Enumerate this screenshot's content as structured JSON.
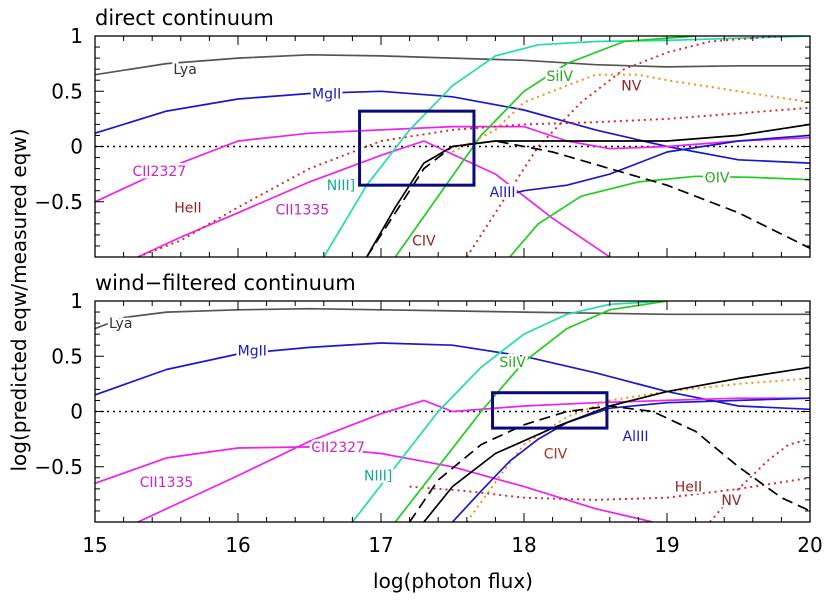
{
  "figure": {
    "xlabel": "log(photon flux)",
    "ylabel": "log(predicted eqw/measured eqw)"
  },
  "chart_data": [
    {
      "type": "line",
      "title": "direct continuum",
      "xlim": [
        15,
        20
      ],
      "ylim": [
        -1,
        1
      ],
      "xticks": [
        "15",
        "16",
        "17",
        "18",
        "19",
        "20"
      ],
      "yticks": [
        "−0.5",
        "0",
        "0.5",
        "1"
      ],
      "box": {
        "x": [
          16.85,
          17.65
        ],
        "y": [
          -0.35,
          0.32
        ]
      },
      "series": [
        {
          "name": "Lya",
          "color": "#555555",
          "style": "solid",
          "x": [
            15,
            15.5,
            16,
            16.5,
            17,
            17.5,
            18,
            18.5,
            19,
            19.5,
            20
          ],
          "y": [
            0.65,
            0.75,
            0.8,
            0.83,
            0.82,
            0.8,
            0.78,
            0.74,
            0.72,
            0.73,
            0.73
          ]
        },
        {
          "name": "MgII",
          "color": "#1a1acc",
          "style": "solid",
          "x": [
            15,
            15.5,
            16,
            16.5,
            17,
            17.5,
            18,
            18.5,
            19,
            19.5,
            20
          ],
          "y": [
            0.12,
            0.32,
            0.43,
            0.48,
            0.5,
            0.45,
            0.33,
            0.15,
            0.0,
            -0.12,
            -0.15
          ]
        },
        {
          "name": "CII2327",
          "color": "#ee22ee",
          "style": "solid",
          "x": [
            15,
            15.5,
            16,
            16.5,
            17,
            17.5,
            18,
            18.3,
            18.6,
            19,
            19.5,
            20
          ],
          "y": [
            -0.5,
            -0.2,
            0.05,
            0.12,
            0.15,
            0.18,
            0.18,
            0.05,
            -0.02,
            0.0,
            0.05,
            0.08
          ]
        },
        {
          "name": "CII1335",
          "color": "#ee22ee",
          "style": "solid",
          "x": [
            15.3,
            15.6,
            16,
            16.5,
            17,
            17.3,
            17.8,
            18.2,
            18.6
          ],
          "y": [
            -1.0,
            -0.82,
            -0.6,
            -0.32,
            -0.08,
            0.05,
            -0.25,
            -0.65,
            -1.0
          ]
        },
        {
          "name": "HeII",
          "color": "#dd2222",
          "style": "dotted",
          "x": [
            15.3,
            15.6,
            16,
            16.5,
            17,
            17.5,
            18,
            18.5,
            19,
            19.5,
            20
          ],
          "y": [
            -1.0,
            -0.85,
            -0.55,
            -0.2,
            0.05,
            0.15,
            0.2,
            0.22,
            0.25,
            0.3,
            0.35
          ]
        },
        {
          "name": "NIII]",
          "color": "#22ddaa",
          "style": "solid",
          "x": [
            16.6,
            16.9,
            17.2,
            17.5,
            17.8,
            18.1,
            18.5,
            19,
            19.5,
            20
          ],
          "y": [
            -1.0,
            -0.35,
            0.15,
            0.55,
            0.82,
            0.92,
            0.95,
            0.96,
            0.98,
            1.0
          ]
        },
        {
          "name": "SiIV",
          "color": "#22cc22",
          "style": "solid",
          "x": [
            17.1,
            17.4,
            17.7,
            18,
            18.3,
            18.7,
            19.2
          ],
          "y": [
            -1.0,
            -0.45,
            0.1,
            0.5,
            0.75,
            0.95,
            1.0
          ]
        },
        {
          "name": "NV",
          "color": "#ff8800",
          "style": "dotted",
          "x": [
            17.5,
            17.8,
            18,
            18.3,
            18.5,
            18.8,
            19,
            19.5,
            20
          ],
          "y": [
            -0.05,
            0.15,
            0.4,
            0.55,
            0.65,
            0.65,
            0.6,
            0.5,
            0.4
          ]
        },
        {
          "name": "CIV",
          "color": "#dd2222",
          "style": "dotted",
          "x": [
            17.6,
            17.9,
            18.1,
            18.4,
            18.7,
            19,
            19.3,
            19.8
          ],
          "y": [
            -1.0,
            -0.4,
            0.0,
            0.4,
            0.7,
            0.85,
            0.95,
            1.0
          ]
        },
        {
          "name": "AlIII",
          "color": "#1a1acc",
          "style": "solid",
          "x": [
            17.85,
            18,
            18.3,
            18.6,
            19,
            19.5,
            20
          ],
          "y": [
            -0.45,
            -0.4,
            -0.35,
            -0.25,
            -0.05,
            0.05,
            0.1
          ]
        },
        {
          "name": "OIV",
          "color": "#22cc22",
          "style": "solid",
          "x": [
            17.9,
            18.1,
            18.4,
            18.8,
            19.2,
            19.6,
            20
          ],
          "y": [
            -1.0,
            -0.7,
            -0.45,
            -0.32,
            -0.27,
            -0.28,
            -0.3
          ]
        },
        {
          "name": "",
          "color": "#000000",
          "style": "solid",
          "x": [
            16.9,
            17.1,
            17.3,
            17.5,
            17.8,
            18.2,
            18.6,
            19,
            19.5,
            20
          ],
          "y": [
            -1.0,
            -0.55,
            -0.15,
            0.0,
            0.05,
            0.05,
            0.05,
            0.05,
            0.1,
            0.2
          ]
        },
        {
          "name": "",
          "color": "#000000",
          "style": "dashed",
          "x": [
            16.9,
            17.1,
            17.3,
            17.5,
            17.8,
            18.2,
            18.6,
            19,
            19.5,
            20
          ],
          "y": [
            -1.0,
            -0.6,
            -0.2,
            0.0,
            0.05,
            -0.05,
            -0.2,
            -0.35,
            -0.6,
            -0.92
          ]
        }
      ],
      "labels": [
        {
          "text": "Lya",
          "x": 15.63,
          "y": 0.7,
          "color": "#333333",
          "series": "Lya"
        },
        {
          "text": "MgII",
          "x": 16.62,
          "y": 0.48,
          "color": "#1a1acc",
          "series": "MgII"
        },
        {
          "text": "SiIV",
          "x": 18.25,
          "y": 0.64,
          "color": "#22aa22",
          "series": "SiIV"
        },
        {
          "text": "NV",
          "x": 18.75,
          "y": 0.55,
          "color": "#992222",
          "series": "NV"
        },
        {
          "text": "CII2327",
          "x": 15.45,
          "y": -0.22,
          "color": "#cc22cc",
          "series": "CII2327"
        },
        {
          "text": "HeII",
          "x": 15.65,
          "y": -0.55,
          "color": "#992222",
          "series": "HeII"
        },
        {
          "text": "CII1335",
          "x": 16.45,
          "y": -0.57,
          "color": "#cc22cc",
          "series": "CII1335"
        },
        {
          "text": "NIII]",
          "x": 16.72,
          "y": -0.35,
          "color": "#11aa99",
          "series": "NIII]"
        },
        {
          "text": "AlIII",
          "x": 17.85,
          "y": -0.41,
          "color": "#1a1acc",
          "series": "AlIII"
        },
        {
          "text": "OIV",
          "x": 19.35,
          "y": -0.28,
          "color": "#22aa22",
          "series": "OIV"
        },
        {
          "text": "CIV",
          "x": 17.3,
          "y": -0.85,
          "color": "#992222",
          "series": "CIV"
        }
      ]
    },
    {
      "type": "line",
      "title": "wind−filtered continuum",
      "xlim": [
        15,
        20
      ],
      "ylim": [
        -1,
        1
      ],
      "xticks": [
        "15",
        "16",
        "17",
        "18",
        "19",
        "20"
      ],
      "yticks": [
        "−0.5",
        "0",
        "0.5",
        "1"
      ],
      "box": {
        "x": [
          17.78,
          18.58
        ],
        "y": [
          -0.15,
          0.17
        ]
      },
      "series": [
        {
          "name": "Lya",
          "color": "#555555",
          "style": "solid",
          "x": [
            15,
            15.2,
            15.5,
            16,
            16.5,
            17,
            17.5,
            18,
            18.5,
            19,
            19.5,
            20
          ],
          "y": [
            0.75,
            0.85,
            0.9,
            0.92,
            0.93,
            0.92,
            0.91,
            0.9,
            0.89,
            0.88,
            0.88,
            0.88
          ]
        },
        {
          "name": "MgII",
          "color": "#1a1acc",
          "style": "solid",
          "x": [
            15,
            15.5,
            16,
            16.5,
            17,
            17.5,
            18,
            18.5,
            19,
            19.5,
            20
          ],
          "y": [
            0.15,
            0.38,
            0.52,
            0.58,
            0.62,
            0.6,
            0.5,
            0.35,
            0.18,
            0.05,
            0.02
          ]
        },
        {
          "name": "CII2327",
          "color": "#ee22ee",
          "style": "solid",
          "x": [
            15,
            15.5,
            16,
            16.5,
            17,
            17.5,
            18,
            18.5,
            18.9
          ],
          "y": [
            -0.65,
            -0.42,
            -0.33,
            -0.32,
            -0.38,
            -0.5,
            -0.68,
            -0.88,
            -1.0
          ]
        },
        {
          "name": "CII1335",
          "color": "#ee22ee",
          "style": "solid",
          "x": [
            15.3,
            15.6,
            16,
            16.5,
            17,
            17.3,
            17.5,
            18,
            18.5,
            19,
            19.5,
            20
          ],
          "y": [
            -1.0,
            -0.82,
            -0.58,
            -0.27,
            -0.02,
            0.1,
            0.0,
            0.05,
            0.08,
            0.1,
            0.12,
            0.12
          ]
        },
        {
          "name": "HeII",
          "color": "#dd2222",
          "style": "dotted",
          "x": [
            17.2,
            17.6,
            18,
            18.5,
            19,
            19.5,
            20
          ],
          "y": [
            -0.68,
            -0.72,
            -0.78,
            -0.8,
            -0.78,
            -0.7,
            -0.6
          ]
        },
        {
          "name": "NIII]",
          "color": "#22ddaa",
          "style": "solid",
          "x": [
            16.8,
            17.1,
            17.4,
            17.7,
            18,
            18.3,
            18.6,
            19
          ],
          "y": [
            -1.0,
            -0.5,
            0.0,
            0.4,
            0.7,
            0.88,
            0.97,
            1.0
          ]
        },
        {
          "name": "SiIV",
          "color": "#22cc22",
          "style": "solid",
          "x": [
            17.1,
            17.4,
            17.7,
            18,
            18.3,
            18.6,
            19
          ],
          "y": [
            -1.0,
            -0.5,
            0.0,
            0.45,
            0.75,
            0.92,
            1.0
          ]
        },
        {
          "name": "CIV",
          "color": "#ff8800",
          "style": "dotted",
          "x": [
            17.6,
            17.85,
            18,
            18.3,
            18.6,
            19,
            19.5,
            20
          ],
          "y": [
            -1.0,
            -0.55,
            -0.3,
            -0.05,
            0.1,
            0.18,
            0.25,
            0.3
          ]
        },
        {
          "name": "AlIII",
          "color": "#1a1acc",
          "style": "solid",
          "x": [
            17.5,
            17.7,
            17.9,
            18.1,
            18.3,
            18.6,
            19,
            19.5,
            20
          ],
          "y": [
            -1.0,
            -0.72,
            -0.45,
            -0.25,
            -0.1,
            0.03,
            0.08,
            0.1,
            0.12
          ]
        },
        {
          "name": "NV",
          "color": "#dd2222",
          "style": "dotted",
          "x": [
            19.3,
            19.5,
            19.7,
            19.85,
            20
          ],
          "y": [
            -1.0,
            -0.7,
            -0.45,
            -0.3,
            -0.25
          ]
        },
        {
          "name": "",
          "color": "#000000",
          "style": "solid",
          "x": [
            17.3,
            17.5,
            17.8,
            18.2,
            18.6,
            19,
            19.5,
            20
          ],
          "y": [
            -1.0,
            -0.68,
            -0.38,
            -0.15,
            0.05,
            0.18,
            0.3,
            0.4
          ]
        },
        {
          "name": "",
          "color": "#000000",
          "style": "dashed",
          "x": [
            17.2,
            17.4,
            17.7,
            18,
            18.3,
            18.6,
            18.9,
            19.2,
            19.5,
            19.8,
            20
          ],
          "y": [
            -1.0,
            -0.62,
            -0.3,
            -0.12,
            0.0,
            0.05,
            0.0,
            -0.18,
            -0.5,
            -0.78,
            -0.9
          ]
        }
      ],
      "labels": [
        {
          "text": "Lya",
          "x": 15.18,
          "y": 0.8,
          "color": "#333333",
          "series": "Lya"
        },
        {
          "text": "MgII",
          "x": 16.1,
          "y": 0.55,
          "color": "#1a1acc",
          "series": "MgII"
        },
        {
          "text": "SiIV",
          "x": 17.92,
          "y": 0.45,
          "color": "#22aa22",
          "series": "SiIV"
        },
        {
          "text": "CII2327",
          "x": 16.7,
          "y": -0.32,
          "color": "#cc22cc",
          "series": "CII2327"
        },
        {
          "text": "CII1335",
          "x": 15.5,
          "y": -0.64,
          "color": "#cc22cc",
          "series": "CII1335"
        },
        {
          "text": "NIII]",
          "x": 16.98,
          "y": -0.58,
          "color": "#11aa99",
          "series": "NIII]"
        },
        {
          "text": "CIV",
          "x": 18.22,
          "y": -0.38,
          "color": "#aa3322",
          "series": "CIV"
        },
        {
          "text": "AlIII",
          "x": 18.78,
          "y": -0.22,
          "color": "#1a1acc",
          "series": "AlIII"
        },
        {
          "text": "HeII",
          "x": 19.15,
          "y": -0.68,
          "color": "#992222",
          "series": "HeII"
        },
        {
          "text": "NV",
          "x": 19.45,
          "y": -0.8,
          "color": "#992222",
          "series": "NV"
        }
      ]
    }
  ]
}
